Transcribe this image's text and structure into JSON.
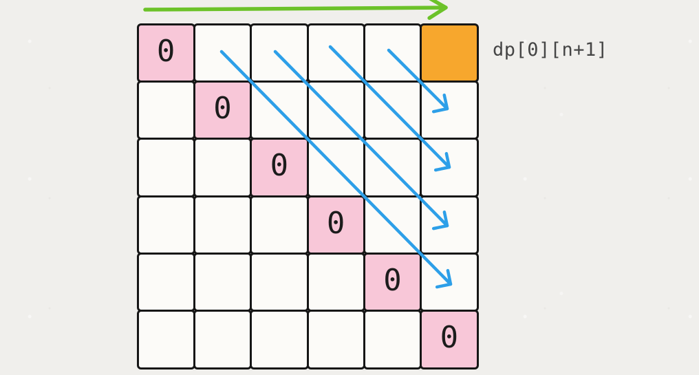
{
  "diagram": {
    "label": "dp[0][n+1]",
    "grid": {
      "rows": 6,
      "cols": 6,
      "zero_value": "0",
      "zero_cells": [
        [
          1,
          1
        ],
        [
          2,
          2
        ],
        [
          3,
          3
        ],
        [
          4,
          4
        ],
        [
          5,
          5
        ],
        [
          6,
          6
        ]
      ],
      "orange_cell": [
        1,
        6
      ]
    },
    "arrows": {
      "row_sweep": {
        "name": "green-right-arrow",
        "direction": "left-to-right"
      },
      "diagonals": [
        {
          "from_cell": [
            1,
            5
          ],
          "to_cell": [
            2,
            6
          ]
        },
        {
          "from_cell": [
            1,
            4
          ],
          "to_cell": [
            3,
            6
          ]
        },
        {
          "from_cell": [
            1,
            3
          ],
          "to_cell": [
            4,
            6
          ]
        },
        {
          "from_cell": [
            1,
            2
          ],
          "to_cell": [
            5,
            6
          ]
        }
      ]
    },
    "colors": {
      "page_bg": "#f0efec",
      "cell_bg": "#fcfbf8",
      "pink": "#f8c7d8",
      "orange": "#f7a72d",
      "green": "#6cc229",
      "blue": "#2d9fe8",
      "border": "#161616",
      "zero_text": "#1c1c1c",
      "label_text": "#454545"
    }
  }
}
